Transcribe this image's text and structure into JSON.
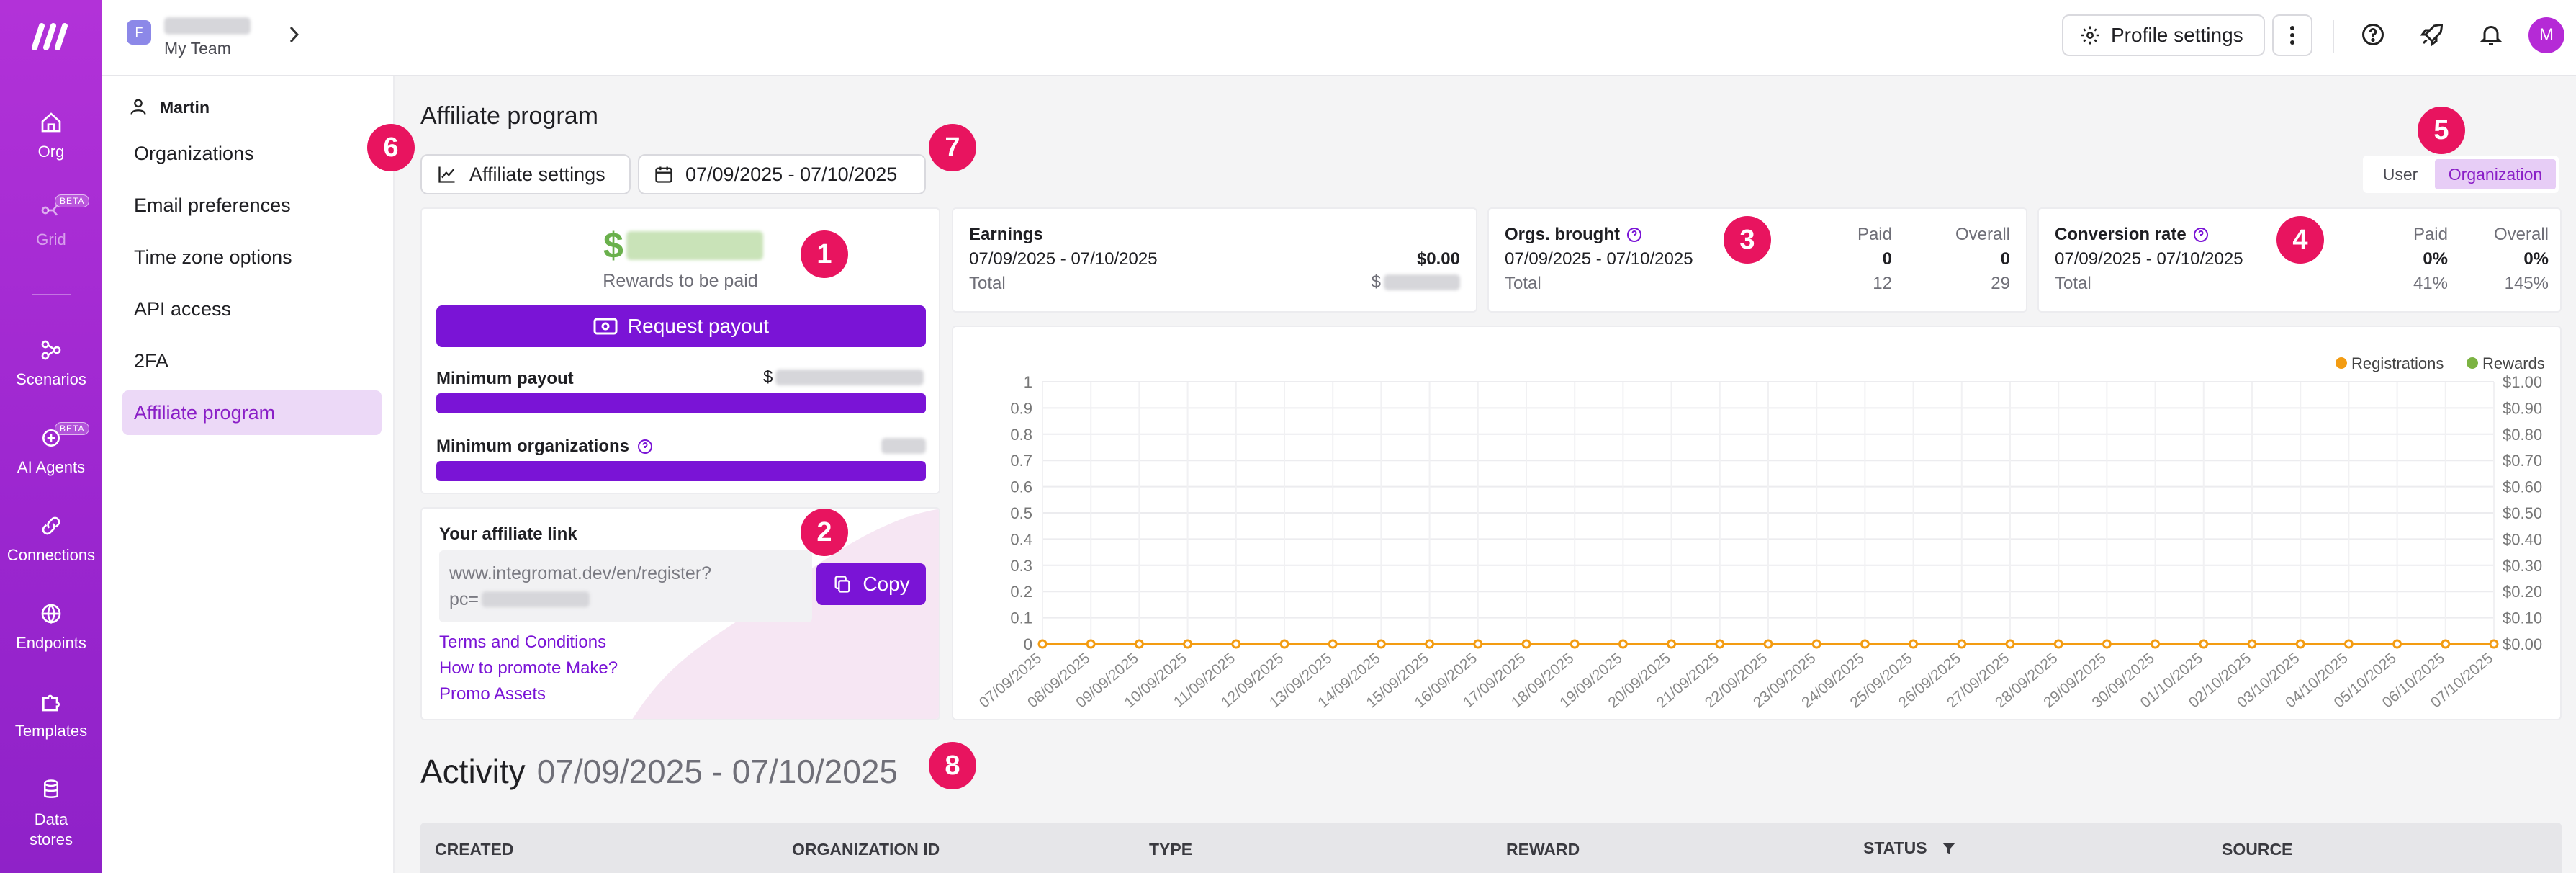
{
  "rail": {
    "items": [
      {
        "label": "Org",
        "icon": "home-icon"
      },
      {
        "label": "Grid",
        "icon": "grid-icon",
        "badge": "BETA"
      },
      {
        "label": "Scenarios",
        "icon": "share-icon"
      },
      {
        "label": "AI Agents",
        "icon": "ai-agent-icon",
        "badge": "BETA"
      },
      {
        "label": "Connections",
        "icon": "link-icon"
      },
      {
        "label": "Endpoints",
        "icon": "globe-icon"
      },
      {
        "label": "Templates",
        "icon": "puzzle-icon"
      },
      {
        "label": "Data stores",
        "icon": "database-icon"
      }
    ]
  },
  "team": {
    "initial": "F",
    "name": "My Team"
  },
  "topbar": {
    "profile_settings": "Profile settings",
    "avatar_initial": "M"
  },
  "settings_nav": {
    "user": "Martin",
    "items": [
      "Organizations",
      "Email preferences",
      "Time zone options",
      "API access",
      "2FA",
      "Affiliate program"
    ],
    "active": "Affiliate program"
  },
  "page": {
    "title": "Affiliate program",
    "affiliate_settings": "Affiliate settings",
    "date_range": "07/09/2025 - 07/10/2025",
    "toggle": {
      "user": "User",
      "organization": "Organization",
      "selected": "Organization"
    }
  },
  "rewards": {
    "currency": "$",
    "caption": "Rewards to be paid",
    "request_payout": "Request payout",
    "min_payout_label": "Minimum payout",
    "min_payout_currency": "$",
    "min_orgs_label": "Minimum organizations"
  },
  "affiliate_link": {
    "title": "Your affiliate link",
    "url_line1": "www.integromat.dev/en/register?",
    "url_line2": "pc=",
    "copy": "Copy",
    "links": [
      "Terms and Conditions",
      "How to promote Make?",
      "Promo Assets"
    ]
  },
  "earnings": {
    "title": "Earnings",
    "range": "07/09/2025 - 07/10/2025",
    "range_value": "$0.00",
    "total_label": "Total",
    "total_currency": "$"
  },
  "orgs_brought": {
    "title": "Orgs. brought",
    "paid": "Paid",
    "overall": "Overall",
    "range": "07/09/2025 - 07/10/2025",
    "range_paid": "0",
    "range_overall": "0",
    "total_label": "Total",
    "total_paid": "12",
    "total_overall": "29"
  },
  "conversion": {
    "title": "Conversion rate",
    "paid": "Paid",
    "overall": "Overall",
    "range": "07/09/2025 - 07/10/2025",
    "range_paid": "0%",
    "range_overall": "0%",
    "total_label": "Total",
    "total_paid": "41%",
    "total_overall": "145%"
  },
  "markers": [
    "1",
    "2",
    "3",
    "4",
    "5",
    "6",
    "7",
    "8"
  ],
  "activity": {
    "title": "Activity",
    "range": "07/09/2025 - 07/10/2025",
    "columns": [
      "CREATED",
      "ORGANIZATION ID",
      "TYPE",
      "REWARD",
      "STATUS",
      "SOURCE"
    ]
  },
  "colors": {
    "accent": "#7a14d6",
    "rail": "#a82dd6",
    "registrations": "#f39c12",
    "rewards": "#7cb342",
    "marker": "#e8145f"
  },
  "chart_data": {
    "type": "line",
    "x": [
      "07/09/2025",
      "08/09/2025",
      "09/09/2025",
      "10/09/2025",
      "11/09/2025",
      "12/09/2025",
      "13/09/2025",
      "14/09/2025",
      "15/09/2025",
      "16/09/2025",
      "17/09/2025",
      "18/09/2025",
      "19/09/2025",
      "20/09/2025",
      "21/09/2025",
      "22/09/2025",
      "23/09/2025",
      "24/09/2025",
      "25/09/2025",
      "26/09/2025",
      "27/09/2025",
      "28/09/2025",
      "29/09/2025",
      "30/09/2025",
      "01/10/2025",
      "02/10/2025",
      "03/10/2025",
      "04/10/2025",
      "05/10/2025",
      "06/10/2025",
      "07/10/2025"
    ],
    "series": [
      {
        "name": "Registrations",
        "values": [
          0,
          0,
          0,
          0,
          0,
          0,
          0,
          0,
          0,
          0,
          0,
          0,
          0,
          0,
          0,
          0,
          0,
          0,
          0,
          0,
          0,
          0,
          0,
          0,
          0,
          0,
          0,
          0,
          0,
          0,
          0
        ]
      },
      {
        "name": "Rewards",
        "values": [
          0,
          0,
          0,
          0,
          0,
          0,
          0,
          0,
          0,
          0,
          0,
          0,
          0,
          0,
          0,
          0,
          0,
          0,
          0,
          0,
          0,
          0,
          0,
          0,
          0,
          0,
          0,
          0,
          0,
          0,
          0
        ]
      }
    ],
    "yleft_ticks": [
      "0",
      "0.1",
      "0.2",
      "0.3",
      "0.4",
      "0.5",
      "0.6",
      "0.7",
      "0.8",
      "0.9",
      "1"
    ],
    "yright_ticks": [
      "$0.00",
      "$0.10",
      "$0.20",
      "$0.30",
      "$0.40",
      "$0.50",
      "$0.60",
      "$0.70",
      "$0.80",
      "$0.90",
      "$1.00"
    ],
    "ylim": [
      0,
      1
    ],
    "legend": "top-right",
    "grid": true
  }
}
